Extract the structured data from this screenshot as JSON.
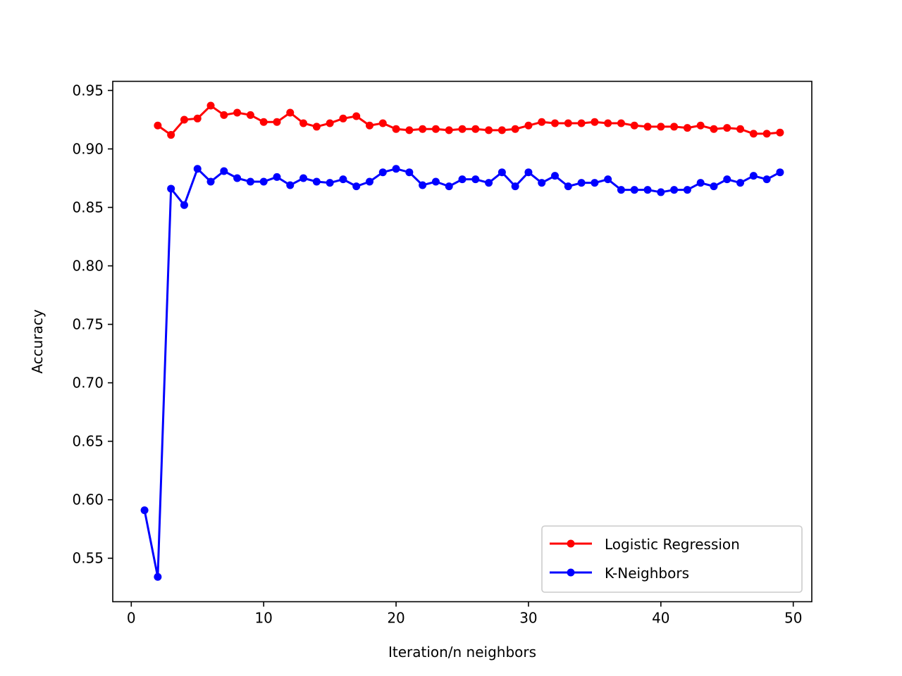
{
  "chart_data": {
    "type": "line",
    "title": "",
    "xlabel": "Iteration/n neighbors",
    "ylabel": "Accuracy",
    "xlim": [
      -1.4,
      51.4
    ],
    "ylim": [
      0.5128,
      0.9578
    ],
    "xticks": [
      0,
      10,
      20,
      30,
      40,
      50
    ],
    "xtick_labels": [
      "0",
      "10",
      "20",
      "30",
      "40",
      "50"
    ],
    "yticks": [
      0.55,
      0.6,
      0.65,
      0.7,
      0.75,
      0.8,
      0.85,
      0.9,
      0.95
    ],
    "ytick_labels": [
      "0.55",
      "0.60",
      "0.65",
      "0.70",
      "0.75",
      "0.80",
      "0.85",
      "0.90",
      "0.95"
    ],
    "grid": false,
    "legend_position": "lower-right",
    "series": [
      {
        "name": "Logistic Regression",
        "color": "#ff0000",
        "marker": "circle",
        "x": [
          2,
          3,
          4,
          5,
          6,
          7,
          8,
          9,
          10,
          11,
          12,
          13,
          14,
          15,
          16,
          17,
          18,
          19,
          20,
          21,
          22,
          23,
          24,
          25,
          26,
          27,
          28,
          29,
          30,
          31,
          32,
          33,
          34,
          35,
          36,
          37,
          38,
          39,
          40,
          41,
          42,
          43,
          44,
          45,
          46,
          47,
          48,
          49
        ],
        "values": [
          0.92,
          0.912,
          0.925,
          0.926,
          0.937,
          0.929,
          0.931,
          0.929,
          0.923,
          0.923,
          0.931,
          0.922,
          0.919,
          0.922,
          0.926,
          0.928,
          0.92,
          0.922,
          0.917,
          0.916,
          0.917,
          0.917,
          0.916,
          0.917,
          0.917,
          0.916,
          0.916,
          0.917,
          0.92,
          0.923,
          0.922,
          0.922,
          0.922,
          0.923,
          0.922,
          0.922,
          0.92,
          0.919,
          0.919,
          0.919,
          0.918,
          0.92,
          0.917,
          0.918,
          0.917,
          0.913,
          0.913,
          0.914
        ]
      },
      {
        "name": "K-Neighbors",
        "color": "#0000ff",
        "marker": "circle",
        "x": [
          1,
          2,
          3,
          4,
          5,
          6,
          7,
          8,
          9,
          10,
          11,
          12,
          13,
          14,
          15,
          16,
          17,
          18,
          19,
          20,
          21,
          22,
          23,
          24,
          25,
          26,
          27,
          28,
          29,
          30,
          31,
          32,
          33,
          34,
          35,
          36,
          37,
          38,
          39,
          40,
          41,
          42,
          43,
          44,
          45,
          46,
          47,
          48,
          49
        ],
        "values": [
          0.591,
          0.534,
          0.866,
          0.852,
          0.883,
          0.872,
          0.881,
          0.875,
          0.872,
          0.872,
          0.876,
          0.869,
          0.875,
          0.872,
          0.871,
          0.874,
          0.868,
          0.872,
          0.88,
          0.883,
          0.88,
          0.869,
          0.872,
          0.868,
          0.874,
          0.874,
          0.871,
          0.88,
          0.868,
          0.88,
          0.871,
          0.877,
          0.868,
          0.871,
          0.871,
          0.874,
          0.865,
          0.865,
          0.865,
          0.863,
          0.865,
          0.865,
          0.871,
          0.868,
          0.874,
          0.871,
          0.877,
          0.874,
          0.88
        ]
      }
    ]
  }
}
